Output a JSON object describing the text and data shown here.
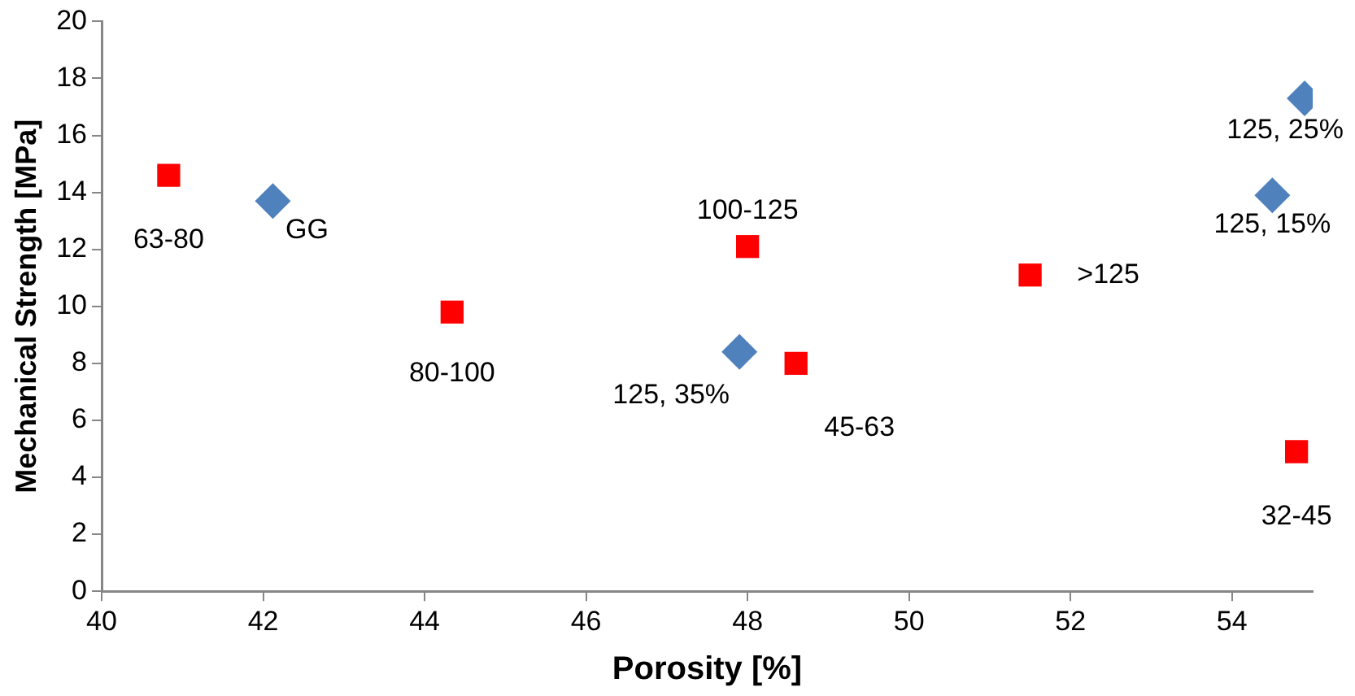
{
  "chart_data": {
    "type": "scatter",
    "xlabel": "Porosity [%]",
    "ylabel": "Mechanical Strength [MPa]",
    "xlim": [
      40,
      55
    ],
    "xticks": [
      40,
      42,
      44,
      46,
      48,
      50,
      52,
      54
    ],
    "ylim": [
      0,
      20
    ],
    "yticks": [
      0,
      2,
      4,
      6,
      8,
      10,
      12,
      14,
      16,
      18,
      20
    ],
    "grid": false,
    "legend": false,
    "series": [
      {
        "color": "#ff0000",
        "marker": "square",
        "x": [
          40.83,
          44.34,
          48.0,
          48.6,
          51.5,
          54.8
        ],
        "values": [
          14.6,
          9.8,
          12.1,
          8.0,
          11.1,
          4.9
        ]
      },
      {
        "color": "#4f81bd",
        "marker": "diamond",
        "x": [
          42.12,
          47.9,
          54.5,
          54.9
        ],
        "values": [
          13.7,
          8.4,
          13.9,
          17.3
        ]
      }
    ],
    "annotations": [
      {
        "text": "63-80",
        "x": 40.83,
        "y": 14.6
      },
      {
        "text": "80-100",
        "x": 44.34,
        "y": 9.8
      },
      {
        "text": "100-125",
        "x": 48.0,
        "y": 12.1
      },
      {
        "text": "45-63",
        "x": 48.6,
        "y": 8.0
      },
      {
        "text": ">125",
        "x": 51.5,
        "y": 11.1
      },
      {
        "text": "32-45",
        "x": 54.8,
        "y": 4.9
      },
      {
        "text": "GG",
        "x": 42.12,
        "y": 13.7
      },
      {
        "text": "125, 35%",
        "x": 47.9,
        "y": 8.4
      },
      {
        "text": "125, 15%",
        "x": 54.5,
        "y": 13.9
      },
      {
        "text": "125, 25%",
        "x": 54.9,
        "y": 17.3
      }
    ]
  }
}
